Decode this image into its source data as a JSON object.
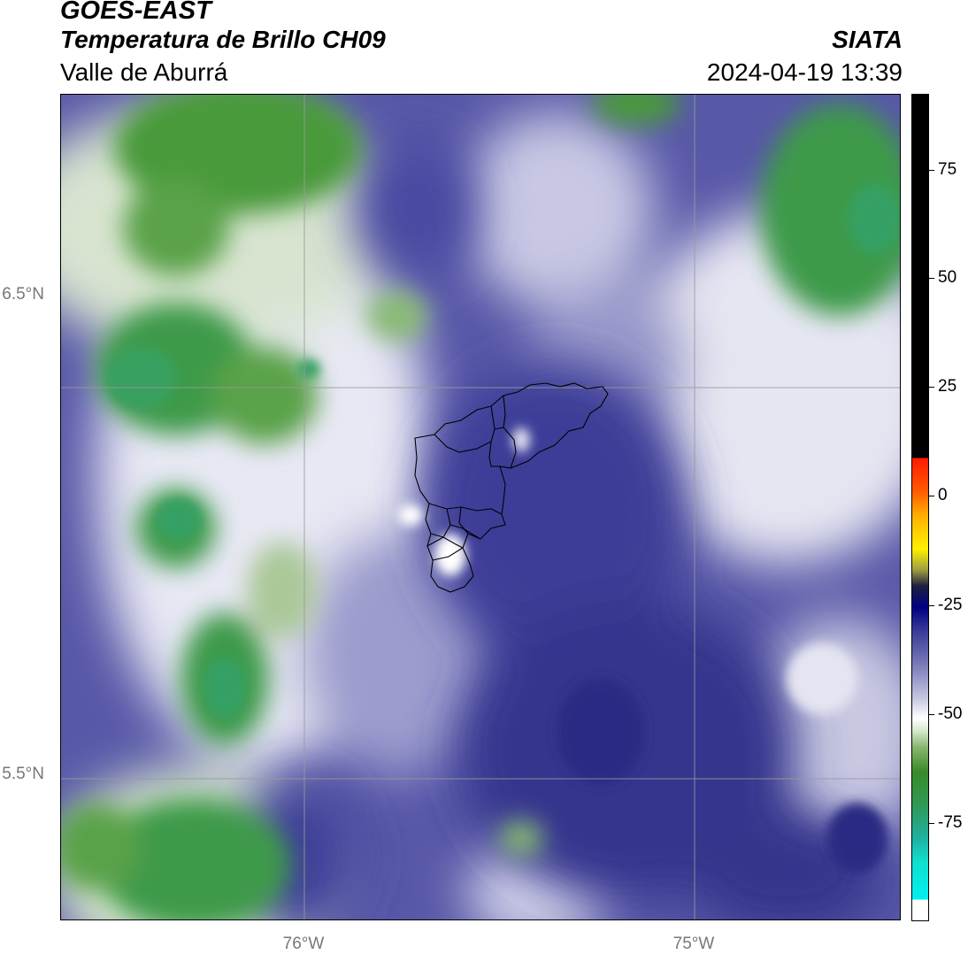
{
  "header": {
    "title": "GOES-EAST",
    "subtitle": "Temperatura de Brillo CH09",
    "region": "Valle de Aburrá",
    "organization": "SIATA",
    "timestamp": "2024-04-19 13:39"
  },
  "axes": {
    "lat_labels": [
      "6.5°N",
      "5.5°N"
    ],
    "lon_labels": [
      "76°W",
      "75°W"
    ]
  },
  "colorbar": {
    "ticks": [
      "75",
      "50",
      "25",
      "0",
      "-25",
      "-50",
      "-75"
    ],
    "colors": {
      "warm": "#000000",
      "hot": "#ff1a00",
      "navy": "#000080",
      "purple": "#3a3a9a",
      "white": "#ffffff",
      "green": "#3a8a2a",
      "cyan": "#00f0f0"
    }
  },
  "map": {
    "icons": [
      "valle-de-aburra-boundary-outline"
    ]
  }
}
